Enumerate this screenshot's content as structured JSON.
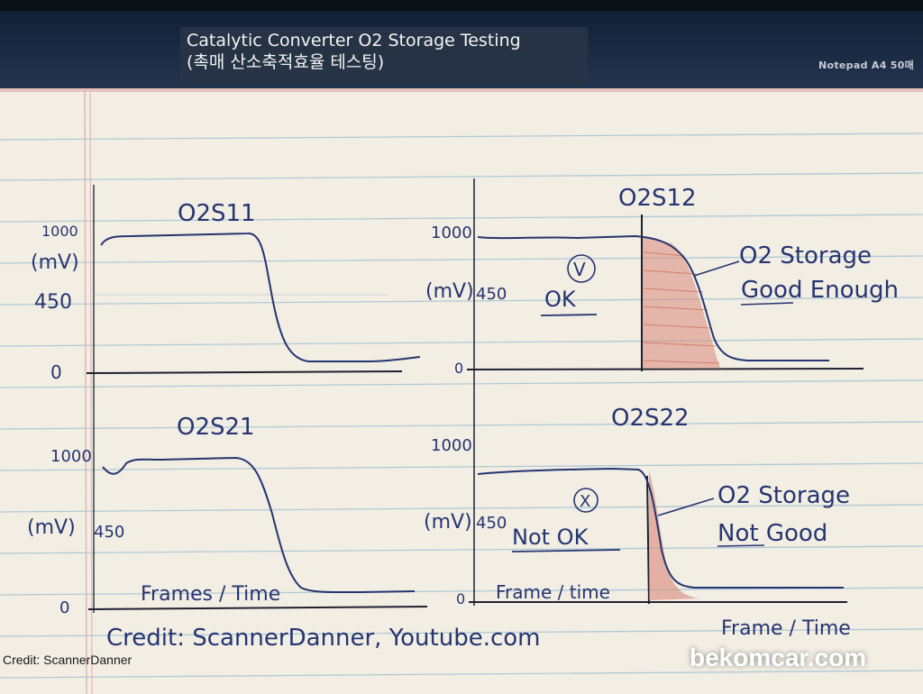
{
  "header": {
    "caption_line1": "Catalytic Converter O2 Storage Testing",
    "caption_line2": "(촉매 산소축적효율 테스팅)",
    "notepad_label": "Notepad A4 50매"
  },
  "sheet": {
    "credit_line": "Credit: ScannerDanner, Youtube.com",
    "frame_time_corner": "Frame / Time",
    "panels": [
      {
        "title": "O2S11",
        "y_top": "1000",
        "y_unit": "(mV)",
        "y_mid": "450",
        "y_zero": "0"
      },
      {
        "title": "O2S12",
        "y_top": "1000",
        "y_unit": "(mV)",
        "y_mid": "450",
        "y_zero": "0",
        "check_mark": "V",
        "verdict": "OK",
        "note_line1": "O2 Storage",
        "note_line2": "Good Enough"
      },
      {
        "title": "O2S21",
        "y_top": "1000",
        "y_unit": "(mV)",
        "y_mid": "450",
        "y_zero": "0",
        "x_label": "Frames / Time"
      },
      {
        "title": "O2S22",
        "y_top": "1000",
        "y_unit": "(mV)",
        "y_mid": "450",
        "y_zero": "0",
        "x_label": "Frame / time",
        "cross_mark": "X",
        "verdict": "Not OK",
        "note_line1": "O2 Storage",
        "note_line2": "Not Good"
      }
    ]
  },
  "footer": {
    "credit": "Credit: ScannerDanner",
    "brand": "bekomcar.com"
  },
  "colors": {
    "ink": "#253571",
    "shade": "#d9887a",
    "rule_line": "#9fc0d2",
    "margin_line": "#e0b8b4",
    "paper": "#f2eee4"
  }
}
